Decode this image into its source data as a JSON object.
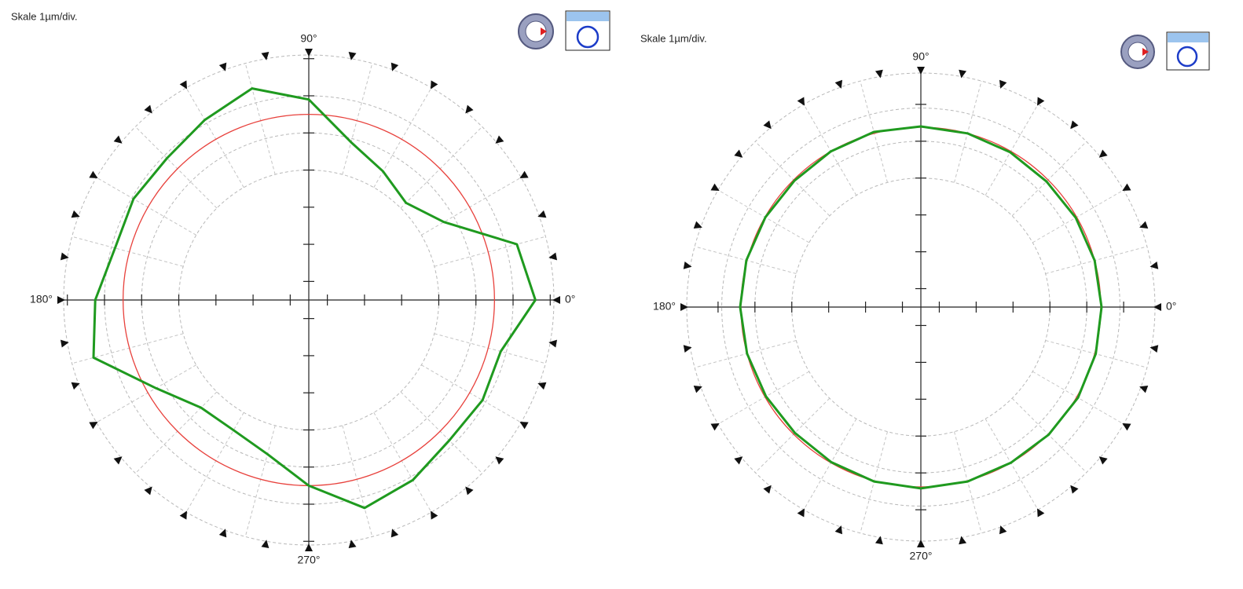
{
  "chart_data": [
    {
      "type": "polar",
      "title": "Skale 1µm/div.",
      "rlim": [
        0,
        6.6
      ],
      "rings": [
        3.5,
        4.5,
        5.5,
        6.6
      ],
      "axis_ticks": [
        0.5,
        1.5,
        2.5,
        3.5,
        4.5,
        5.5,
        6.5
      ],
      "theta_ticks": [
        {
          "value": 0,
          "label": "0°"
        },
        {
          "value": 90,
          "label": "90°"
        },
        {
          "value": 180,
          "label": "180°"
        },
        {
          "value": 270,
          "label": "270°"
        }
      ],
      "ref_radius": 5.0,
      "ref_color": "#e8413c",
      "profile": {
        "color": "#1f9a1f",
        "theta": [
          0,
          15,
          30,
          45,
          60,
          75,
          90,
          105,
          120,
          135,
          150,
          165,
          180,
          195,
          210,
          225,
          240,
          255,
          270,
          285,
          300,
          315,
          330,
          345
        ],
        "r": [
          6.1,
          5.8,
          4.2,
          3.7,
          4.0,
          4.4,
          5.4,
          5.9,
          5.6,
          5.4,
          5.45,
          5.4,
          5.75,
          6.0,
          4.75,
          4.1,
          4.05,
          4.3,
          5.0,
          5.8,
          5.6,
          5.35,
          5.4,
          5.35
        ]
      }
    },
    {
      "type": "polar",
      "title": "Skale 1µm/div.",
      "rlim": [
        0,
        6.35
      ],
      "rings": [
        3.5,
        4.5,
        5.4,
        6.35
      ],
      "axis_ticks": [
        0.5,
        1.5,
        2.5,
        3.5,
        4.5,
        5.5
      ],
      "theta_ticks": [
        {
          "value": 0,
          "label": "0°"
        },
        {
          "value": 90,
          "label": "90°"
        },
        {
          "value": 180,
          "label": "180°"
        },
        {
          "value": 270,
          "label": "270°"
        }
      ],
      "ref_radius": 4.88,
      "ref_color": "#e8413c",
      "profile": {
        "color": "#1f9a1f",
        "theta": [
          0,
          15,
          30,
          45,
          60,
          75,
          90,
          105,
          120,
          135,
          150,
          165,
          180,
          195,
          210,
          225,
          240,
          255,
          270,
          285,
          300,
          315,
          330,
          345
        ],
        "r": [
          4.9,
          4.88,
          4.85,
          4.82,
          4.85,
          4.88,
          4.9,
          4.92,
          4.88,
          4.85,
          4.87,
          4.9,
          4.9,
          4.88,
          4.85,
          4.83,
          4.86,
          4.9,
          4.92,
          4.9,
          4.88,
          4.9,
          4.92,
          4.91
        ]
      }
    }
  ]
}
